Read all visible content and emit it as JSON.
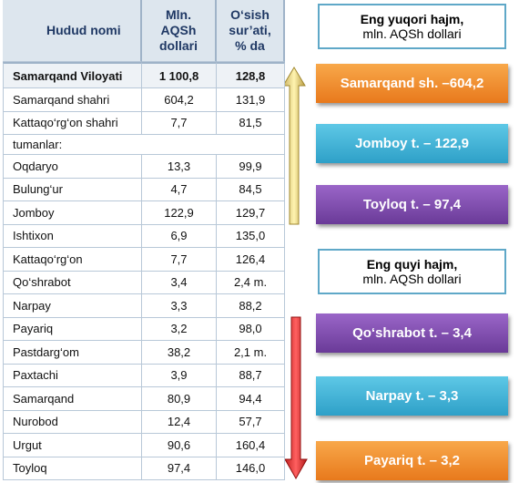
{
  "table": {
    "header": [
      [
        "Hudud nomi"
      ],
      [
        "Mln.",
        "AQSh",
        "dollari"
      ],
      [
        "O‘sish",
        "sur’ati,",
        "% da"
      ]
    ],
    "rows": [
      [
        "Samarqand Viloyati",
        "1 100,8",
        "128,8"
      ],
      [
        "Samarqand  shahri",
        "604,2",
        "131,9"
      ],
      [
        "Kattaqo‘rg‘on shahri",
        "7,7",
        "81,5"
      ],
      [
        "tumanlar:"
      ],
      [
        "Oqdaryo",
        "13,3",
        "99,9"
      ],
      [
        "Bulung‘ur",
        "4,7",
        "84,5"
      ],
      [
        "Jomboy",
        "122,9",
        "129,7"
      ],
      [
        "Ishtixon",
        "6,9",
        "135,0"
      ],
      [
        "Kattaqo‘rg‘on",
        "7,7",
        "126,4"
      ],
      [
        "Qo‘shrabot",
        "3,4",
        "2,4 m."
      ],
      [
        "Narpay",
        "3,3",
        "88,2"
      ],
      [
        "Payariq",
        "3,2",
        "98,0"
      ],
      [
        "Pastdarg‘om",
        "38,2",
        "2,1 m."
      ],
      [
        "Paxtachi",
        "3,9",
        "88,7"
      ],
      [
        "Samarqand",
        "80,9",
        "94,4"
      ],
      [
        "Nurobod",
        "12,4",
        "57,7"
      ],
      [
        "Urgut",
        "90,6",
        "160,4"
      ],
      [
        "Toyloq",
        "97,4",
        "146,0"
      ]
    ]
  },
  "top": {
    "title": [
      "Eng yuqori hajm,",
      "mln. AQSh dollari"
    ],
    "items": [
      "Samarqand sh. –604,2",
      "Jomboy  t. – 122,9",
      "Toyloq t. – 97,4"
    ]
  },
  "bottom": {
    "title": [
      "Eng quyi hajm,",
      "mln. AQSh dollari"
    ],
    "items": [
      "Qo‘shrabot t.  – 3,4",
      "Narpay t. – 3,3",
      "Payariq t. – 3,2"
    ]
  }
}
